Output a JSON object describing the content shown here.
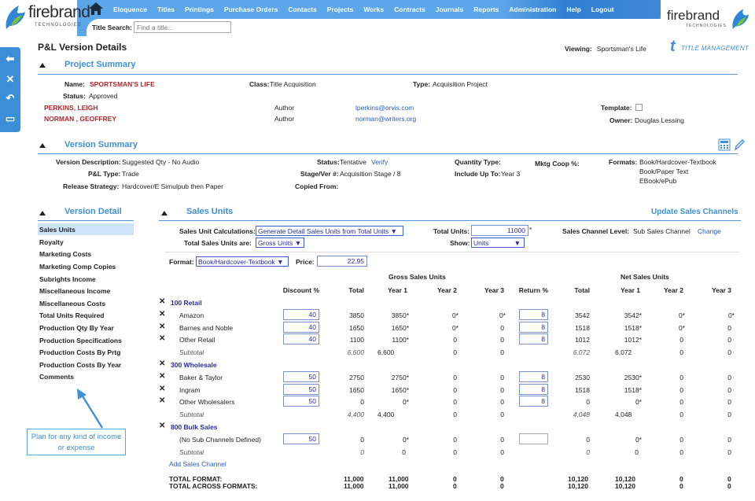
{
  "header": {
    "brand": "firebrand",
    "brand_sub": "TECHNOLOGIES",
    "menu": [
      "Eloquence",
      "Titles",
      "Printings",
      "Purchase Orders",
      "Contacts",
      "Projects",
      "Works",
      "Contracts",
      "Journals",
      "Reports",
      "Administration",
      "Help",
      "Logout"
    ],
    "title_search_label": "Title Search:",
    "title_search_placeholder": "Find a title..."
  },
  "page": {
    "title": "P&L Version Details",
    "viewing_label": "Viewing:",
    "viewing_value": "Sportsman's Life",
    "tm_logo_text": "TITLE MANAGEMENT"
  },
  "project_summary": {
    "heading": "Project Summary",
    "name_label": "Name:",
    "name_value": "SPORTSMAN'S LIFE",
    "class_label": "Class:",
    "class_value": "Title Acquisition",
    "type_label": "Type:",
    "type_value": "Acquisition Project",
    "status_label": "Status:",
    "status_value": "Approved",
    "contacts": [
      {
        "name": "PERKINS, LEIGH",
        "role": "Author",
        "email": "lperkins@orvis.com"
      },
      {
        "name": "NORMAN , GEOFFREY",
        "role": "Author",
        "email": "norman@writers.org"
      }
    ],
    "template_label": "Template:",
    "owner_label": "Owner:",
    "owner_value": "Douglas Lessing"
  },
  "version_summary": {
    "heading": "Version Summary",
    "desc_label": "Version Description:",
    "desc_value": "Suggested Qty - No Audio",
    "pl_type_label": "P&L Type:",
    "pl_type_value": "Trade",
    "release_label": "Release Strategy:",
    "release_value": "Hardcover/E Simulpub then Paper",
    "status_label": "Status:",
    "status_value": "Tentative",
    "verify_link": "Verify",
    "stage_label": "Stage/Ver #:",
    "stage_value": "Acquisition Stage / 8",
    "copied_label": "Copied From:",
    "qty_type_label": "Quantity Type:",
    "include_label": "Include Up To:",
    "include_value": "Year 3",
    "mktg_label": "Mktg Coop %:",
    "formats_label": "Formats:",
    "formats": [
      "Book/Hardcover-Textbook",
      "Book/Paper Text",
      "EBook/ePub"
    ]
  },
  "version_detail": {
    "heading": "Version Detail",
    "items": [
      "Sales Units",
      "Royalty",
      "Marketing Costs",
      "Marketing Comp Copies",
      "Subrights Income",
      "Miscellaneous Income",
      "Miscellaneous Costs",
      "Total Units Required",
      "Production Qty By Year",
      "Production Specifications",
      "Production Costs By Prtg",
      "Production Costs By Year",
      "Comments"
    ],
    "callout": "Plan for any kind of income or expense"
  },
  "sales_units": {
    "heading": "Sales Units",
    "update_link": "Update Sales Channels",
    "calc_label": "Sales Unit Calculations:",
    "calc_value": "Generate Detail Sales Units from Total Units ▼",
    "total_units_label": "Total Units:",
    "total_units_value": "11000",
    "total_units_star": "*",
    "channel_level_label": "Sales Channel Level:",
    "channel_level_value": "Sub Sales Channel",
    "change_link": "Change",
    "total_are_label": "Total Sales Units are:",
    "total_are_value": "Gross Units ▼",
    "show_label": "Show:",
    "show_value": "Units",
    "format_label": "Format:",
    "format_value": "Book/Hardcover-Textbook ▼",
    "price_label": "Price:",
    "price_value": "22.95",
    "gross_header": "Gross Sales Units",
    "net_header": "Net Sales Units",
    "columns": [
      "Discount %",
      "Total",
      "Year 1",
      "Year 2",
      "Year 3",
      "Return %",
      "Total",
      "Year 1",
      "Year 2",
      "Year 3"
    ],
    "groups": [
      {
        "label": "100 Retail",
        "rows": [
          {
            "name": "Amazon",
            "disc": "40",
            "gtotal": "3850",
            "gy1": "3850*",
            "gy2": "0*",
            "gy3": "0*",
            "ret": "8",
            "ntotal": "3542",
            "ny1": "3542*",
            "ny2": "0*",
            "ny3": "0*"
          },
          {
            "name": "Barnes and Noble",
            "disc": "40",
            "gtotal": "1650",
            "gy1": "1650*",
            "gy2": "0*",
            "gy3": "0",
            "ret": "8",
            "ntotal": "1518",
            "ny1": "1518*",
            "ny2": "0*",
            "ny3": "0"
          },
          {
            "name": "Other Retail",
            "disc": "40",
            "gtotal": "1100",
            "gy1": "1100*",
            "gy2": "0",
            "gy3": "0",
            "ret": "8",
            "ntotal": "1012",
            "ny1": "1012*",
            "ny2": "0",
            "ny3": "0"
          }
        ],
        "subtotal": {
          "gtotal": "6,600",
          "gy1": "6,600",
          "gy2": "0",
          "gy3": "0",
          "ntotal": "6,072",
          "ny1": "6,072",
          "ny2": "0",
          "ny3": "0"
        }
      },
      {
        "label": "300 Wholesale",
        "rows": [
          {
            "name": "Baker & Taylor",
            "disc": "50",
            "gtotal": "2750",
            "gy1": "2750*",
            "gy2": "0",
            "gy3": "0",
            "ret": "8",
            "ntotal": "2530",
            "ny1": "2530*",
            "ny2": "0",
            "ny3": "0"
          },
          {
            "name": "Ingram",
            "disc": "50",
            "gtotal": "1650",
            "gy1": "1650*",
            "gy2": "0",
            "gy3": "0",
            "ret": "8",
            "ntotal": "1518",
            "ny1": "1518*",
            "ny2": "0",
            "ny3": "0"
          },
          {
            "name": "Other Wholesalers",
            "disc": "50",
            "gtotal": "0",
            "gy1": "0*",
            "gy2": "0",
            "gy3": "0",
            "ret": "8",
            "ntotal": "0",
            "ny1": "0*",
            "ny2": "0",
            "ny3": "0"
          }
        ],
        "subtotal": {
          "gtotal": "4,400",
          "gy1": "4,400",
          "gy2": "0",
          "gy3": "0",
          "ntotal": "4,048",
          "ny1": "4,048",
          "ny2": "0",
          "ny3": "0"
        }
      },
      {
        "label": "800 Bulk Sales",
        "rows": [
          {
            "name": "(No Sub Channels Defined)",
            "disc": "50",
            "gtotal": "0",
            "gy1": "0*",
            "gy2": "0",
            "gy3": "0",
            "ret": "",
            "ntotal": "0",
            "ny1": "0*",
            "ny2": "0",
            "ny3": "0"
          }
        ],
        "subtotal": {
          "gtotal": "0",
          "gy1": "0",
          "gy2": "0",
          "gy3": "0",
          "ntotal": "0",
          "ny1": "0",
          "ny2": "0",
          "ny3": "0"
        }
      }
    ],
    "subtotal_label": "Subtotal",
    "add_channel": "Add Sales Channel",
    "totals": [
      {
        "label": "TOTAL FORMAT:",
        "gtotal": "11,000",
        "gy1": "11,000",
        "gy2": "0",
        "gy3": "0",
        "ntotal": "10,120",
        "ny1": "10,120",
        "ny2": "0",
        "ny3": "0"
      },
      {
        "label": "TOTAL ACROSS FORMATS:",
        "gtotal": "11,000",
        "gy1": "11,000",
        "gy2": "0",
        "gy3": "0",
        "ntotal": "10,120",
        "ny1": "10,120",
        "ny2": "0",
        "ny3": "0"
      }
    ]
  }
}
